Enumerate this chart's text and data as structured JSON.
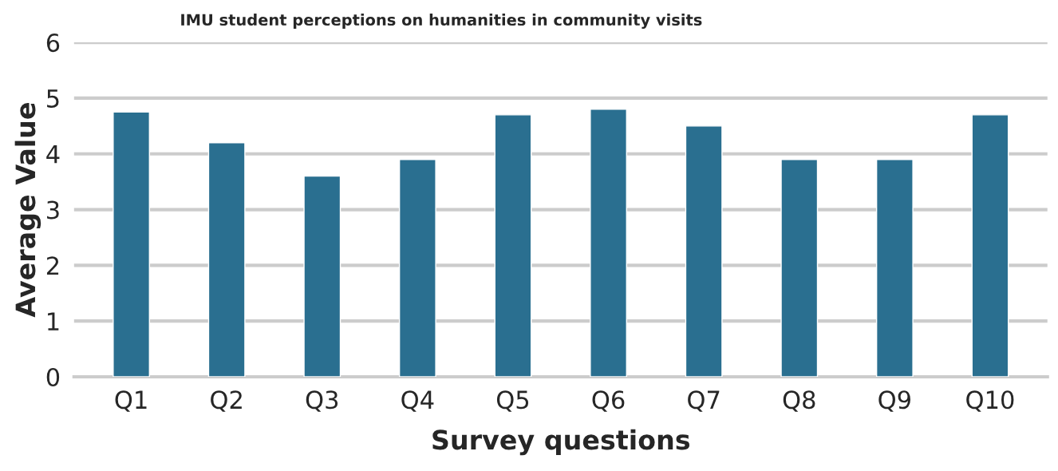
{
  "chart_data": {
    "type": "bar",
    "title": "IMU student perceptions on humanities in community visits",
    "xlabel": "Survey questions",
    "ylabel": "Average Value",
    "categories": [
      "Q1",
      "Q2",
      "Q3",
      "Q4",
      "Q5",
      "Q6",
      "Q7",
      "Q8",
      "Q9",
      "Q10"
    ],
    "values": [
      4.75,
      4.2,
      3.6,
      3.9,
      4.7,
      4.8,
      4.5,
      3.9,
      3.9,
      4.7
    ],
    "color": "#2a6f90",
    "ylim": [
      0,
      6
    ],
    "yticks": [
      0,
      1,
      2,
      3,
      4,
      5,
      6
    ],
    "grid": "y"
  }
}
